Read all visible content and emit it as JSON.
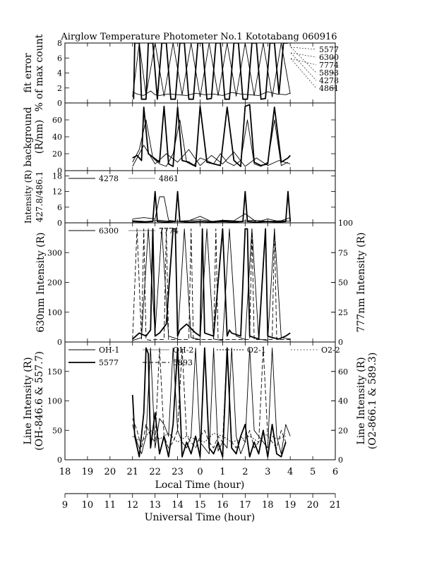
{
  "title": "Airglow Temperature Photometer No.1   Kototabang 060916",
  "chart_data": [
    {
      "id": "fit",
      "type": "line",
      "ylabel_lines": [
        "fit error",
        "% of max count"
      ],
      "ylim": [
        0,
        8
      ],
      "yticks": [
        0,
        2,
        4,
        6,
        8
      ],
      "legend_right": [
        "5577",
        "6300",
        "7774",
        "5893",
        "4278",
        "4861"
      ],
      "series": [
        {
          "style": "thick",
          "x": [
            12.05,
            12.1,
            12.3,
            12.4,
            12.6,
            12.7,
            12.9,
            13.1,
            13.3,
            13.5,
            13.7,
            13.9,
            14.1,
            14.3,
            14.5,
            14.7,
            14.9,
            15.1,
            15.3,
            15.5,
            15.7,
            15.9,
            16.1,
            16.3,
            16.5,
            16.7,
            16.9,
            17.1,
            17.3,
            17.5,
            17.7,
            17.9,
            18.1,
            18.3,
            18.5,
            18.7,
            18.9
          ],
          "y": [
            0.5,
            8,
            8,
            0.5,
            0.5,
            8,
            8,
            0.5,
            8,
            8,
            0.5,
            0.5,
            8,
            8,
            0.5,
            0.5,
            8,
            8,
            0.5,
            0.6,
            8,
            8,
            0.5,
            0.5,
            8,
            8,
            0.5,
            0.5,
            8,
            8,
            0.5,
            0.6,
            8,
            8,
            1.2,
            8,
            8
          ]
        },
        {
          "style": "thin",
          "x": [
            12.0,
            12.2,
            12.5,
            12.8,
            13.0,
            13.2,
            13.6,
            14.0,
            14.4,
            14.8,
            15.2,
            15.6,
            16.0,
            16.4,
            16.8,
            17.2,
            17.6,
            18.0,
            18.4,
            18.8,
            19.0
          ],
          "y": [
            1.5,
            1.2,
            1.0,
            1.6,
            1.1,
            1.0,
            1.2,
            1.1,
            1.0,
            1.3,
            1.1,
            1.2,
            1.0,
            1.4,
            1.2,
            1.1,
            1.0,
            1.5,
            1.2,
            1.1,
            1.3
          ]
        },
        {
          "style": "thin",
          "x": [
            12.0,
            12.3,
            12.6,
            13.0,
            13.4,
            13.8,
            14.2,
            14.6,
            15.0,
            15.4,
            15.8,
            16.2,
            16.6,
            17.0,
            17.4,
            17.8,
            18.2,
            18.6,
            19.0
          ],
          "y": [
            0.8,
            8,
            1.0,
            8,
            0.9,
            8,
            1.1,
            8,
            0.8,
            8,
            1.0,
            8,
            0.9,
            8,
            1.0,
            8,
            0.8,
            8,
            1.2
          ]
        }
      ]
    },
    {
      "id": "bg",
      "type": "line",
      "ylabel_lines": [
        "background",
        "(R/nm)"
      ],
      "ylim": [
        0,
        80
      ],
      "yticks": [
        0,
        20,
        40,
        60
      ],
      "series": [
        {
          "style": "thick",
          "x": [
            12.0,
            12.2,
            12.4,
            12.5,
            12.7,
            13.0,
            13.2,
            13.4,
            13.6,
            13.8,
            14.0,
            14.2,
            14.5,
            14.8,
            15.0,
            15.3,
            15.6,
            15.9,
            16.2,
            16.5,
            16.8,
            17.0,
            17.2,
            17.4,
            17.7,
            18.0,
            18.3,
            18.6,
            18.9,
            19.0
          ],
          "y": [
            15,
            18,
            12,
            75,
            20,
            14,
            10,
            76,
            8,
            5,
            75,
            12,
            10,
            5,
            76,
            10,
            8,
            6,
            75,
            12,
            5,
            76,
            78,
            10,
            6,
            8,
            75,
            10,
            15,
            18
          ]
        },
        {
          "style": "thin",
          "x": [
            12.0,
            12.3,
            12.6,
            12.9,
            13.2,
            13.5,
            13.8,
            14.1,
            14.4,
            14.7,
            15.0,
            15.3,
            15.6,
            15.9,
            16.2,
            16.5,
            16.8,
            17.1,
            17.4,
            17.7,
            18.0,
            18.3,
            18.6,
            18.9
          ],
          "y": [
            10,
            25,
            60,
            15,
            8,
            5,
            20,
            60,
            10,
            6,
            15,
            12,
            8,
            20,
            10,
            6,
            12,
            60,
            8,
            5,
            10,
            60,
            6,
            10
          ]
        },
        {
          "style": "thin",
          "x": [
            12.0,
            12.5,
            13.0,
            13.5,
            14.0,
            14.5,
            15.0,
            15.5,
            16.0,
            16.5,
            17.0,
            17.5,
            18.0,
            18.5,
            19.0
          ],
          "y": [
            5,
            30,
            8,
            20,
            10,
            25,
            6,
            18,
            8,
            22,
            5,
            15,
            6,
            12,
            8
          ]
        }
      ]
    },
    {
      "id": "int4",
      "type": "line",
      "ylabel_lines": [
        "Intensity (R)",
        "427.8/486.1"
      ],
      "ylim": [
        0,
        20
      ],
      "yticks": [
        0,
        6,
        12,
        18
      ],
      "legend_items": [
        {
          "name": "4278",
          "style": "thin"
        },
        {
          "name": "4861",
          "style": "hair"
        }
      ],
      "series": [
        {
          "style": "thick",
          "x": [
            12.0,
            12.5,
            12.9,
            13.0,
            13.1,
            13.5,
            13.9,
            14.0,
            14.1,
            14.5,
            15.0,
            15.5,
            16.0,
            16.5,
            16.9,
            17.0,
            17.1,
            17.5,
            18.0,
            18.5,
            18.8,
            18.9,
            19.0
          ],
          "y": [
            0.5,
            0.3,
            0.5,
            12,
            0.5,
            0.3,
            0.5,
            12,
            0.5,
            0.3,
            0.5,
            0.3,
            0.5,
            0.3,
            0.5,
            12,
            0.5,
            0.3,
            0.5,
            0.3,
            0.5,
            12,
            0.5
          ]
        },
        {
          "style": "thin",
          "x": [
            12.0,
            12.5,
            13.0,
            13.2,
            13.4,
            13.6,
            14.0,
            14.5,
            15.0,
            15.5,
            16.0,
            16.5,
            17.0,
            17.5,
            18.0,
            18.5,
            19.0
          ],
          "y": [
            1.5,
            2,
            1.5,
            10,
            10,
            1.0,
            0.5,
            0.8,
            2.5,
            0.5,
            1.0,
            0.8,
            3.5,
            0.3,
            1.5,
            0.5,
            2.0
          ]
        },
        {
          "style": "thin",
          "x": [
            12.0,
            12.6,
            13.2,
            13.8,
            14.4,
            15.0,
            15.6,
            16.2,
            16.8,
            17.4,
            18.0,
            18.6,
            19.0
          ],
          "y": [
            0.8,
            0.5,
            1.0,
            0.5,
            0.8,
            1.2,
            0.5,
            0.8,
            0.6,
            1.0,
            0.5,
            0.8,
            0.6
          ]
        }
      ]
    },
    {
      "id": "red",
      "type": "line",
      "ylabel": "630nm Intensity (R)",
      "ylabel_right": "777nm Intensity (R)",
      "ylim": [
        0,
        400
      ],
      "yticks": [
        0,
        100,
        200,
        300
      ],
      "ylim_right": [
        0,
        100
      ],
      "yticks_right": [
        0,
        25,
        50,
        75,
        100
      ],
      "legend_items": [
        {
          "name": "6300",
          "style": "thin"
        },
        {
          "name": "7774",
          "style": "hair"
        }
      ],
      "series": [
        {
          "style": "thick",
          "x": [
            12.0,
            12.3,
            12.6,
            12.8,
            12.9,
            13.0,
            13.2,
            13.5,
            13.8,
            13.9,
            14.0,
            14.1,
            14.4,
            14.8,
            15.0,
            15.1,
            15.2,
            15.6,
            16.0,
            16.2,
            16.3,
            16.4,
            16.8,
            17.0,
            17.1,
            17.2,
            17.6,
            17.9,
            18.0,
            18.2,
            18.5,
            18.8,
            19.0
          ],
          "y": [
            10,
            30,
            20,
            40,
            380,
            20,
            30,
            60,
            380,
            380,
            20,
            40,
            60,
            30,
            20,
            380,
            30,
            20,
            380,
            20,
            40,
            30,
            20,
            380,
            380,
            20,
            10,
            380,
            20,
            15,
            10,
            20,
            30
          ]
        },
        {
          "style": "thin",
          "x": [
            12.0,
            12.4,
            12.7,
            13.0,
            13.3,
            13.6,
            14.0,
            14.3,
            14.6,
            15.0,
            15.3,
            15.6,
            16.0,
            16.3,
            16.6,
            17.0,
            17.3,
            17.6,
            18.0,
            18.3,
            18.6,
            19.0
          ],
          "y": [
            5,
            15,
            380,
            30,
            380,
            20,
            10,
            380,
            15,
            8,
            380,
            10,
            5,
            380,
            20,
            8,
            380,
            10,
            5,
            380,
            15,
            10
          ]
        },
        {
          "style": "dash",
          "x": [
            12.0,
            12.2,
            12.4,
            12.5,
            12.6,
            12.8,
            13.0,
            13.4,
            13.5,
            13.6,
            14.5,
            14.6,
            14.7,
            15.6,
            15.7,
            15.8,
            17.2,
            17.3,
            17.4,
            18.2,
            18.3,
            18.4,
            19.0
          ],
          "y": [
            8,
            380,
            8,
            380,
            8,
            6,
            8,
            8,
            380,
            8,
            8,
            380,
            8,
            8,
            380,
            8,
            8,
            380,
            8,
            8,
            380,
            8,
            8
          ]
        }
      ]
    },
    {
      "id": "line",
      "type": "line",
      "ylabel_lines": [
        "Line Intensity (R)",
        "(OH-846.6 & 557.7)"
      ],
      "ylabel_right_lines": [
        "Line Intensity (R)",
        "(O2-866.1 & 589.3)"
      ],
      "ylim": [
        0,
        200
      ],
      "yticks": [
        0,
        50,
        100,
        150
      ],
      "ylim_right": [
        0,
        80
      ],
      "yticks_right": [
        0,
        20,
        40,
        60
      ],
      "legend_items": [
        {
          "name": "OH-1",
          "style": "thin",
          "row": 0
        },
        {
          "name": "OH-2",
          "style": "hair",
          "row": 0
        },
        {
          "name": "O2-1",
          "style": "dot",
          "row": 0
        },
        {
          "name": "O2-2",
          "style": "dot2",
          "row": 0
        },
        {
          "name": "5577",
          "style": "thick",
          "row": 1
        },
        {
          "name": "5893",
          "style": "dash",
          "row": 1
        }
      ],
      "series": [
        {
          "style": "thick",
          "x": [
            12.0,
            12.1,
            12.3,
            12.5,
            12.6,
            12.7,
            12.8,
            13.0,
            13.2,
            13.4,
            13.6,
            13.8,
            14.0,
            14.2,
            14.4,
            14.6,
            14.8,
            15.0,
            15.2,
            15.4,
            15.6,
            15.8,
            16.0,
            16.2,
            16.4,
            16.6,
            16.8,
            17.0,
            17.2,
            17.4,
            17.6,
            17.8,
            18.0,
            18.2,
            18.4,
            18.6,
            18.8
          ],
          "y": [
            110,
            40,
            5,
            80,
            190,
            180,
            20,
            80,
            10,
            40,
            5,
            60,
            190,
            5,
            30,
            10,
            40,
            5,
            190,
            20,
            10,
            30,
            5,
            190,
            20,
            10,
            40,
            60,
            5,
            30,
            10,
            50,
            5,
            60,
            10,
            5,
            30
          ]
        },
        {
          "style": "thin",
          "x": [
            12.0,
            12.2,
            12.4,
            12.6,
            12.8,
            13.0,
            13.2,
            13.4,
            13.6,
            13.8,
            14.0,
            14.2,
            14.4,
            14.6,
            14.8,
            15.0,
            15.2,
            15.4,
            15.6,
            15.8,
            16.0,
            16.2,
            16.4,
            16.6,
            16.8,
            17.0,
            17.2,
            17.4,
            17.6,
            17.8,
            18.0,
            18.2,
            18.4,
            18.6,
            18.8,
            19.0
          ],
          "y": [
            60,
            30,
            10,
            40,
            190,
            20,
            70,
            60,
            40,
            190,
            50,
            30,
            20,
            40,
            190,
            30,
            20,
            10,
            190,
            15,
            30,
            20,
            190,
            40,
            10,
            30,
            190,
            50,
            40,
            30,
            20,
            190,
            40,
            10,
            60,
            40
          ]
        },
        {
          "style": "dash",
          "x": [
            12.0,
            12.2,
            12.4,
            12.6,
            12.8,
            13.0,
            13.2,
            13.4,
            13.6,
            13.8,
            14.0,
            14.2,
            14.4,
            14.6,
            14.8,
            15.0,
            15.2,
            15.4,
            15.6,
            15.8,
            16.0,
            16.2,
            16.4,
            16.6,
            16.8,
            17.0,
            17.2,
            17.4,
            17.6,
            17.8,
            18.0,
            18.2,
            18.4,
            18.6,
            18.8
          ],
          "y": [
            70,
            50,
            20,
            60,
            40,
            30,
            190,
            40,
            20,
            30,
            50,
            190,
            40,
            30,
            20,
            40,
            50,
            30,
            20,
            40,
            30,
            190,
            30,
            20,
            40,
            30,
            50,
            20,
            30,
            190,
            40,
            30,
            20,
            50,
            30
          ]
        },
        {
          "style": "dot",
          "x": [
            12.0,
            12.4,
            12.8,
            13.2,
            13.6,
            14.0,
            14.4,
            14.8,
            15.2,
            15.6,
            16.0,
            16.4,
            16.8,
            17.2,
            17.6,
            18.0,
            18.4,
            18.8
          ],
          "y": [
            40,
            30,
            50,
            35,
            45,
            30,
            40,
            35,
            30,
            45,
            40,
            30,
            35,
            40,
            30,
            45,
            35,
            40
          ]
        }
      ]
    }
  ],
  "axes": {
    "local": {
      "label": "Local Time (hour)",
      "ticks": [
        "18",
        "19",
        "20",
        "21",
        "22",
        "23",
        "0",
        "1",
        "2",
        "3",
        "4",
        "5",
        "6"
      ]
    },
    "ut": {
      "label": "Universal Time (hour)",
      "ticks": [
        "9",
        "10",
        "11",
        "12",
        "13",
        "14",
        "15",
        "16",
        "17",
        "18",
        "19",
        "20",
        "21"
      ]
    },
    "xlim": [
      9,
      21
    ]
  }
}
